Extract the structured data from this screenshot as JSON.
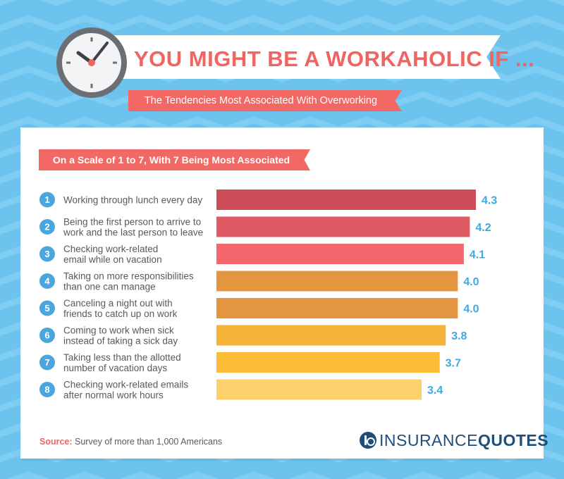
{
  "header": {
    "title": "YOU MIGHT BE A WORKAHOLIC IF ...",
    "subtitle": "The Tendencies Most Associated With Overworking"
  },
  "chart_data": {
    "type": "bar",
    "orientation": "horizontal",
    "scale_label": "On a Scale of 1 to 7, With 7 Being Most Associated",
    "items": [
      {
        "rank": "1",
        "label": [
          "Working through lunch every day"
        ],
        "value": 4.3,
        "value_label": "4.3",
        "color": "#cb4d5a"
      },
      {
        "rank": "2",
        "label": [
          "Being the first person to arrive to",
          "work and the last person to leave"
        ],
        "value": 4.2,
        "value_label": "4.2",
        "color": "#e05a63"
      },
      {
        "rank": "3",
        "label": [
          "Checking work-related",
          "email while on vacation"
        ],
        "value": 4.1,
        "value_label": "4.1",
        "color": "#f4666b"
      },
      {
        "rank": "4",
        "label": [
          "Taking on more responsibilities",
          "than one can manage"
        ],
        "value": 4.0,
        "value_label": "4.0",
        "color": "#e3963f"
      },
      {
        "rank": "5",
        "label": [
          "Canceling a night out with",
          "friends to catch up on work"
        ],
        "value": 4.0,
        "value_label": "4.0",
        "color": "#e3963f"
      },
      {
        "rank": "6",
        "label": [
          "Coming to work when sick",
          "instead of taking a sick day"
        ],
        "value": 3.8,
        "value_label": "3.8",
        "color": "#f4b43a"
      },
      {
        "rank": "7",
        "label": [
          "Taking less than the allotted",
          "number of vacation days"
        ],
        "value": 3.7,
        "value_label": "3.7",
        "color": "#fbbd35"
      },
      {
        "rank": "8",
        "label": [
          "Checking work-related emails",
          "after normal work hours"
        ],
        "value": 3.4,
        "value_label": "3.4",
        "color": "#fcd06b"
      }
    ],
    "xlim": [
      0,
      4.3
    ],
    "grid": false,
    "legend": "none"
  },
  "footer": {
    "source_key": "Source:",
    "source_text": " Survey of more than 1,000 Americans",
    "logo_text_1": "INSURANCE",
    "logo_text_2": "QUOTES"
  },
  "colors": {
    "accent_red": "#f06461",
    "value_blue": "#3fa9df",
    "background": "#6cc3ee",
    "logo_navy": "#1f4e79"
  }
}
